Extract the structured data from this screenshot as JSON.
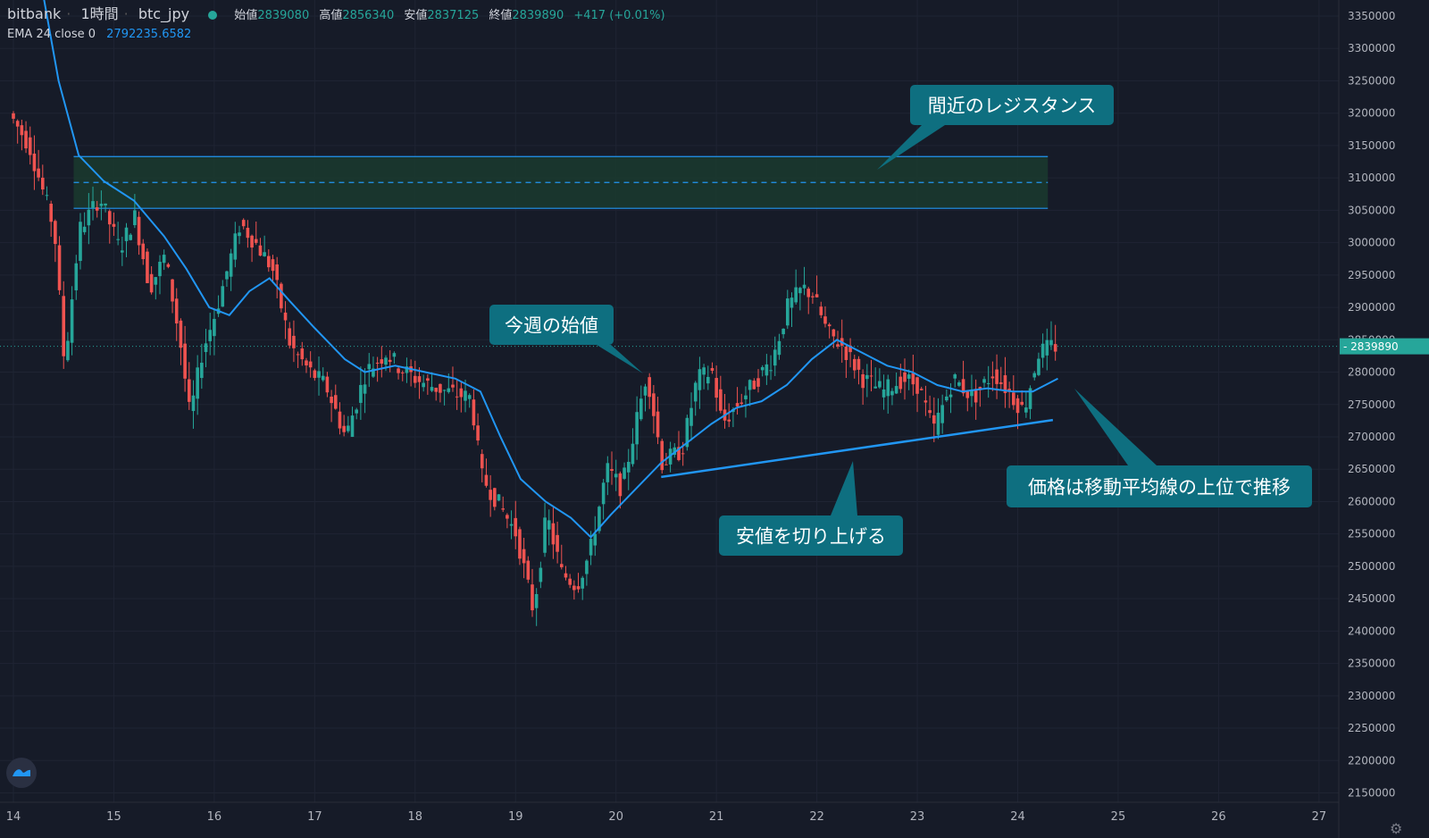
{
  "header": {
    "exchange": "bitbank",
    "interval": "1時間",
    "symbol": "btc_jpy",
    "open_label": "始値",
    "open_value": "2839080",
    "high_label": "高値",
    "high_value": "2856340",
    "low_label": "安値",
    "low_value": "2837125",
    "close_label": "終値",
    "close_value": "2839890",
    "change": "+417 (+0.01%)"
  },
  "indicator": {
    "name": "EMA 24 close 0",
    "value": "2792235.6582"
  },
  "colors": {
    "background": "#161b28",
    "up": "#26a69a",
    "down": "#ef5350",
    "ema": "#2196f3",
    "zone_fill": "#1a3a2e",
    "callout": "#0e6f80",
    "price_tag": "#26a69a",
    "grid": "#1f2433"
  },
  "icons": {
    "logo": "tradingview-logo-icon",
    "settings": "gear-icon"
  },
  "annotations": [
    {
      "text": "間近のレジスタンス"
    },
    {
      "text": "今週の始値"
    },
    {
      "text": "安値を切り上げる"
    },
    {
      "text": "価格は移動平均線の上位で推移"
    }
  ],
  "chart_data": {
    "type": "candlestick",
    "title": "",
    "xlabel": "",
    "ylabel": "",
    "x_ticks": [
      "14",
      "15",
      "16",
      "17",
      "18",
      "19",
      "20",
      "21",
      "22",
      "23",
      "24",
      "25",
      "26",
      "27"
    ],
    "y_ticks": [
      3350000,
      3300000,
      3250000,
      3200000,
      3150000,
      3100000,
      3050000,
      3000000,
      2950000,
      2900000,
      2850000,
      2800000,
      2750000,
      2700000,
      2650000,
      2600000,
      2550000,
      2500000,
      2450000,
      2400000,
      2350000,
      2300000,
      2250000,
      2200000,
      2150000
    ],
    "ylim": [
      2140000,
      3370000
    ],
    "xlim": [
      14.0,
      27.0
    ],
    "last_price": 2839890,
    "last_price_label": "2839890",
    "resistance_zone": {
      "top": 3133000,
      "bottom": 3053000,
      "mid": 3093000,
      "x_start": 14.6,
      "x_end": 24.3
    },
    "higher_lows_trendline": {
      "x": [
        20.45,
        24.35
      ],
      "y": [
        2638000,
        2726000
      ]
    },
    "price_path": [
      [
        14.0,
        3200000
      ],
      [
        14.2,
        3150000
      ],
      [
        14.45,
        3020000
      ],
      [
        14.55,
        2810000
      ],
      [
        14.7,
        3020000
      ],
      [
        14.9,
        3070000
      ],
      [
        15.1,
        2990000
      ],
      [
        15.25,
        3040000
      ],
      [
        15.4,
        2930000
      ],
      [
        15.55,
        2980000
      ],
      [
        15.7,
        2850000
      ],
      [
        15.8,
        2730000
      ],
      [
        15.92,
        2830000
      ],
      [
        16.05,
        2890000
      ],
      [
        16.3,
        3030000
      ],
      [
        16.45,
        3000000
      ],
      [
        16.62,
        2960000
      ],
      [
        16.8,
        2840000
      ],
      [
        17.0,
        2800000
      ],
      [
        17.15,
        2780000
      ],
      [
        17.35,
        2700000
      ],
      [
        17.55,
        2800000
      ],
      [
        17.75,
        2830000
      ],
      [
        17.9,
        2805000
      ],
      [
        18.1,
        2785000
      ],
      [
        18.35,
        2770000
      ],
      [
        18.6,
        2760000
      ],
      [
        18.7,
        2640000
      ],
      [
        18.9,
        2590000
      ],
      [
        19.05,
        2550000
      ],
      [
        19.22,
        2430000
      ],
      [
        19.35,
        2580000
      ],
      [
        19.5,
        2490000
      ],
      [
        19.65,
        2470000
      ],
      [
        19.78,
        2520000
      ],
      [
        19.95,
        2650000
      ],
      [
        20.1,
        2620000
      ],
      [
        20.35,
        2800000
      ],
      [
        20.5,
        2660000
      ],
      [
        20.7,
        2680000
      ],
      [
        20.85,
        2790000
      ],
      [
        21.0,
        2800000
      ],
      [
        21.1,
        2720000
      ],
      [
        21.3,
        2760000
      ],
      [
        21.6,
        2820000
      ],
      [
        21.75,
        2900000
      ],
      [
        21.9,
        2930000
      ],
      [
        22.0,
        2920000
      ],
      [
        22.15,
        2860000
      ],
      [
        22.3,
        2840000
      ],
      [
        22.5,
        2790000
      ],
      [
        22.7,
        2770000
      ],
      [
        22.9,
        2790000
      ],
      [
        23.05,
        2780000
      ],
      [
        23.2,
        2710000
      ],
      [
        23.4,
        2790000
      ],
      [
        23.6,
        2760000
      ],
      [
        23.8,
        2800000
      ],
      [
        24.0,
        2760000
      ],
      [
        24.1,
        2740000
      ],
      [
        24.25,
        2830000
      ],
      [
        24.38,
        2840000
      ]
    ],
    "ema_24": [
      [
        14.3,
        3380000
      ],
      [
        14.45,
        3250000
      ],
      [
        14.65,
        3135000
      ],
      [
        14.9,
        3095000
      ],
      [
        15.2,
        3065000
      ],
      [
        15.5,
        3010000
      ],
      [
        15.72,
        2960000
      ],
      [
        15.95,
        2900000
      ],
      [
        16.15,
        2888000
      ],
      [
        16.35,
        2925000
      ],
      [
        16.55,
        2945000
      ],
      [
        16.75,
        2910000
      ],
      [
        17.0,
        2868000
      ],
      [
        17.3,
        2820000
      ],
      [
        17.5,
        2800000
      ],
      [
        17.8,
        2810000
      ],
      [
        18.1,
        2800000
      ],
      [
        18.4,
        2790000
      ],
      [
        18.65,
        2770000
      ],
      [
        18.85,
        2700000
      ],
      [
        19.05,
        2635000
      ],
      [
        19.3,
        2600000
      ],
      [
        19.55,
        2575000
      ],
      [
        19.75,
        2545000
      ],
      [
        19.95,
        2580000
      ],
      [
        20.2,
        2620000
      ],
      [
        20.45,
        2660000
      ],
      [
        20.7,
        2690000
      ],
      [
        20.95,
        2720000
      ],
      [
        21.2,
        2745000
      ],
      [
        21.45,
        2755000
      ],
      [
        21.7,
        2780000
      ],
      [
        21.95,
        2820000
      ],
      [
        22.2,
        2850000
      ],
      [
        22.45,
        2830000
      ],
      [
        22.7,
        2810000
      ],
      [
        22.95,
        2800000
      ],
      [
        23.2,
        2780000
      ],
      [
        23.45,
        2770000
      ],
      [
        23.7,
        2775000
      ],
      [
        23.95,
        2770000
      ],
      [
        24.15,
        2770000
      ],
      [
        24.4,
        2790000
      ]
    ]
  }
}
